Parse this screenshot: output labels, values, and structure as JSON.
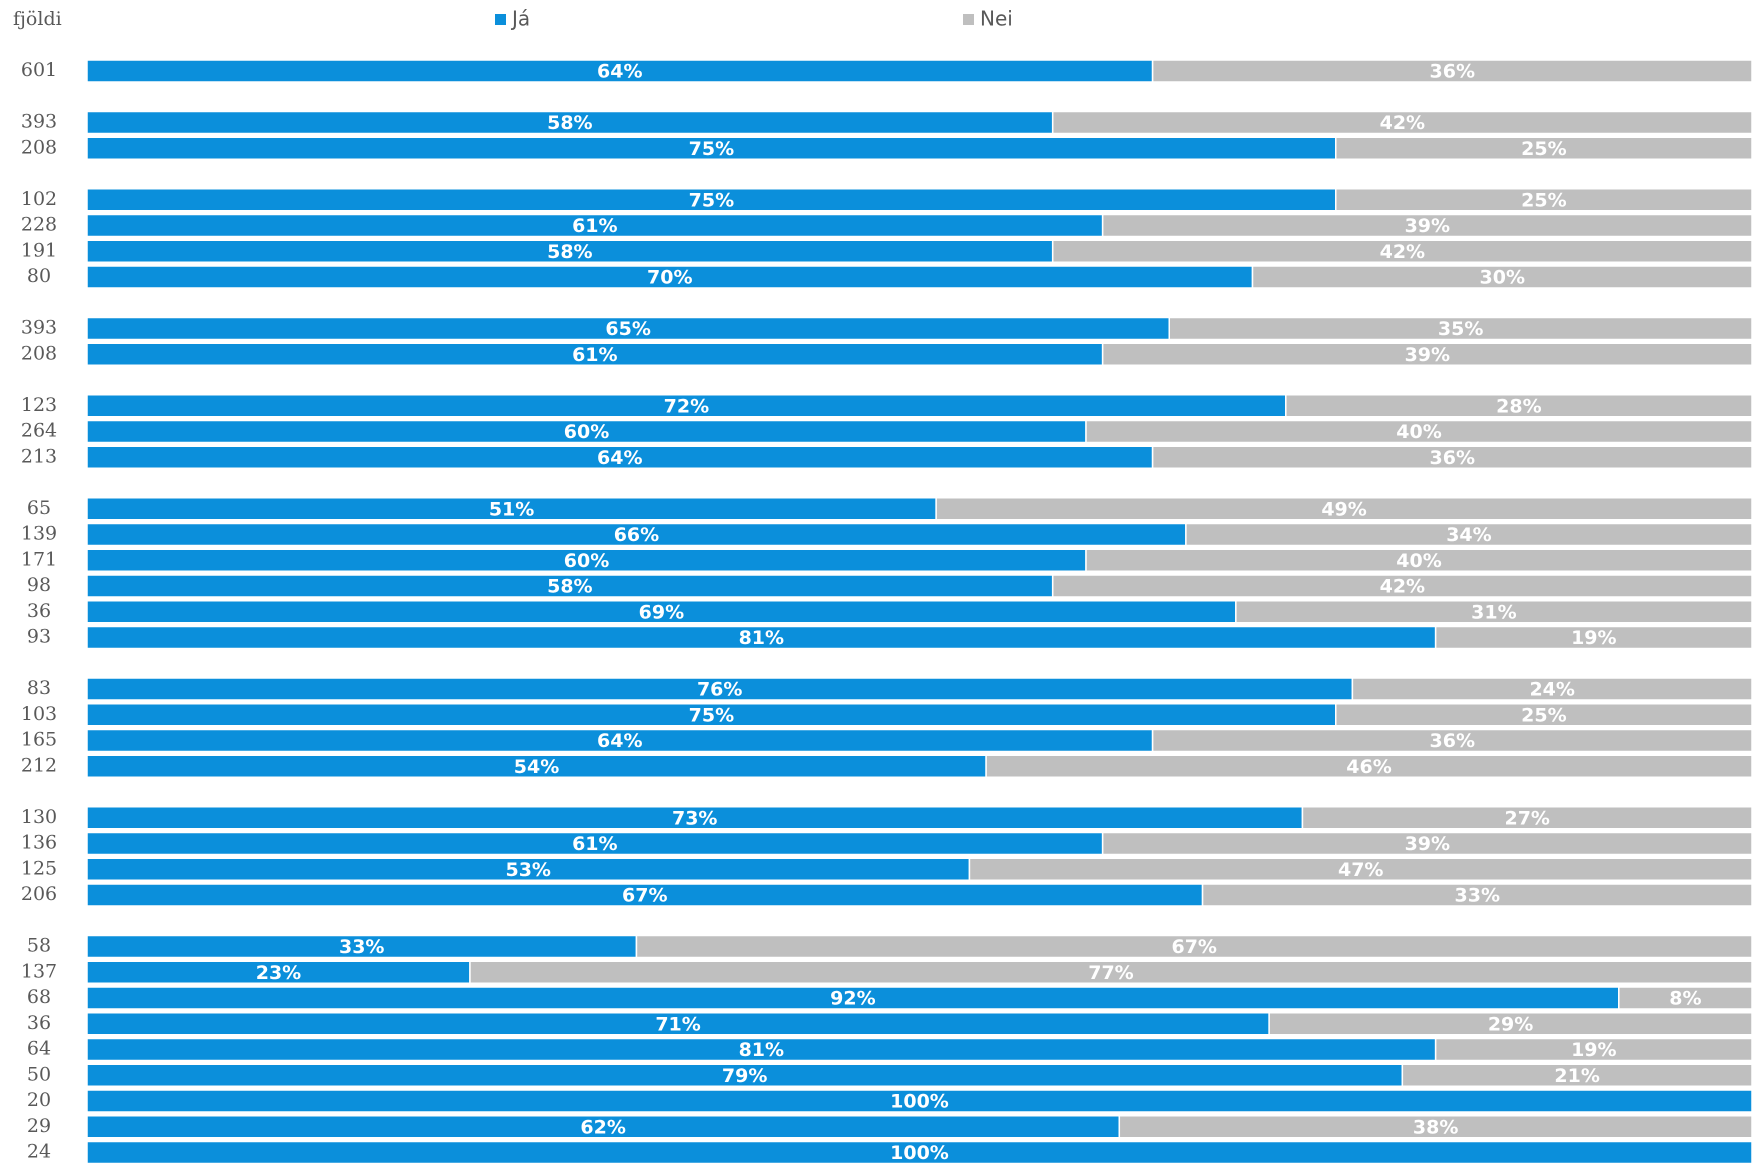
{
  "chart_data": {
    "type": "stacked_barh",
    "ylabel": "fjöldi",
    "categories": [
      "601",
      null,
      "393",
      "208",
      null,
      "102",
      "228",
      "191",
      "80",
      null,
      "393",
      "208",
      null,
      "123",
      "264",
      "213",
      null,
      "65",
      "139",
      "171",
      "98",
      "36",
      "93",
      null,
      "83",
      "103",
      "165",
      "212",
      null,
      "130",
      "136",
      "125",
      "206",
      null,
      "58",
      "137",
      "68",
      "36",
      "64",
      "50",
      "20",
      "29",
      "24"
    ],
    "series": [
      {
        "name": "Já",
        "color": "#0b8fdb",
        "values": [
          64,
          null,
          58,
          75,
          null,
          75,
          61,
          58,
          70,
          null,
          65,
          61,
          null,
          72,
          60,
          64,
          null,
          51,
          66,
          60,
          58,
          69,
          81,
          null,
          76,
          75,
          64,
          54,
          null,
          73,
          61,
          53,
          67,
          null,
          33,
          23,
          92,
          71,
          81,
          79,
          100,
          62,
          100
        ],
        "value_labels": [
          "64%",
          null,
          "58%",
          "75%",
          null,
          "75%",
          "61%",
          "58%",
          "70%",
          null,
          "65%",
          "61%",
          null,
          "72%",
          "60%",
          "64%",
          null,
          "51%",
          "66%",
          "60%",
          "58%",
          "69%",
          "81%",
          null,
          "76%",
          "75%",
          "64%",
          "54%",
          null,
          "73%",
          "61%",
          "53%",
          "67%",
          null,
          "33%",
          "23%",
          "92%",
          "71%",
          "81%",
          "79%",
          "100%",
          "62%",
          "100%"
        ]
      },
      {
        "name": "Nei",
        "color": "#bfbfbf",
        "values": [
          36,
          null,
          42,
          25,
          null,
          25,
          39,
          42,
          30,
          null,
          35,
          39,
          null,
          28,
          40,
          36,
          null,
          49,
          34,
          40,
          42,
          31,
          19,
          null,
          24,
          25,
          36,
          46,
          null,
          27,
          39,
          47,
          33,
          null,
          67,
          77,
          8,
          29,
          19,
          21,
          0,
          38,
          0
        ],
        "value_labels": [
          "36%",
          null,
          "42%",
          "25%",
          null,
          "25%",
          "39%",
          "42%",
          "30%",
          null,
          "35%",
          "39%",
          null,
          "28%",
          "40%",
          "36%",
          null,
          "49%",
          "34%",
          "40%",
          "42%",
          "31%",
          "19%",
          null,
          "24%",
          "25%",
          "36%",
          "46%",
          null,
          "27%",
          "39%",
          "47%",
          "33%",
          null,
          "67%",
          "77%",
          "8%",
          "29%",
          "19%",
          "21%",
          null,
          "38%",
          null
        ]
      }
    ],
    "xlim": [
      0,
      100
    ],
    "legend": "top"
  }
}
